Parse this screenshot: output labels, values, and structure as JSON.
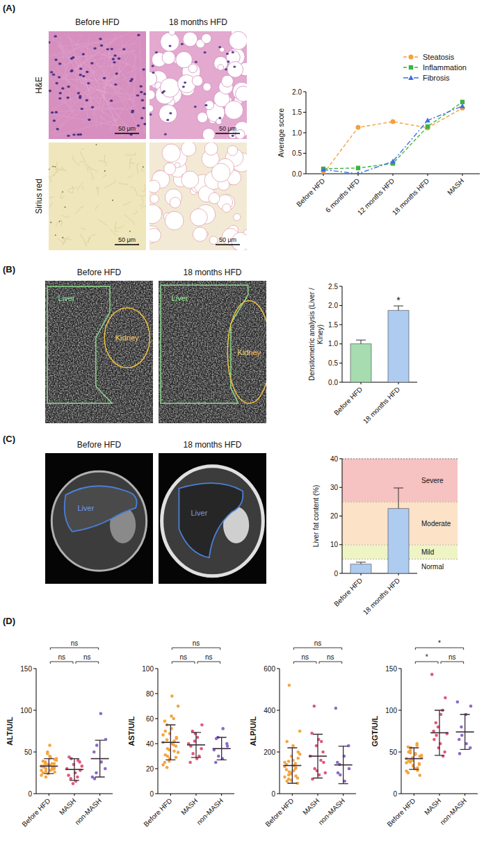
{
  "figure": {
    "panel_labels": [
      "(A)",
      "(B)",
      "(C)",
      "(D)"
    ],
    "histology": {
      "columns": [
        "Before HFD",
        "18 months HFD"
      ],
      "rows": [
        "H&E",
        "Sirius red"
      ],
      "scale_bar": "50 μm"
    },
    "ultrasound": {
      "columns": [
        "Before HFD",
        "18 months HFD"
      ],
      "labels": [
        "Liver",
        "Kidney"
      ]
    },
    "mri": {
      "columns": [
        "Before HFD",
        "18 months HFD"
      ],
      "label": "Liver"
    }
  },
  "chart_data": [
    {
      "type": "line",
      "y_label": "Average score",
      "categories": [
        "Before HFD",
        "6 months HFD",
        "12 months HFD",
        "18 months HFD",
        "MASH"
      ],
      "series": [
        {
          "name": "Steatosis",
          "color": "#f5a03c",
          "marker": "circle",
          "line_style": "dashed",
          "values": [
            0,
            1.13,
            1.27,
            1.12,
            1.6
          ]
        },
        {
          "name": "Inflammation",
          "color": "#3cb43c",
          "marker": "square",
          "line_style": "dashed",
          "values": [
            0.12,
            0.14,
            0.25,
            1.15,
            1.75
          ]
        },
        {
          "name": "Fibrosis",
          "color": "#3c6ee6",
          "marker": "triangle",
          "line_style": "dashdot",
          "values": [
            0.1,
            0,
            0.3,
            1.3,
            1.65
          ]
        }
      ],
      "ylim": [
        0,
        2
      ],
      "yticks": [
        {
          "value": 0,
          "label": "0.0"
        },
        {
          "value": 0.5,
          "label": "0.5"
        },
        {
          "value": 1,
          "label": "1.0"
        },
        {
          "value": 1.5,
          "label": "1.5"
        },
        {
          "value": 2,
          "label": "2.0"
        }
      ],
      "legend": "top-right"
    },
    {
      "type": "bar",
      "y_label": "Densitometric analysis (Liver / Kiney)",
      "categories": [
        "Before HFD",
        "18 months HFD"
      ],
      "values": [
        1.0,
        1.87
      ],
      "errors": [
        0.1,
        0.12
      ],
      "colors": [
        "#a6dcb0",
        "#aecbf0"
      ],
      "ylim": [
        0,
        2.5
      ],
      "yticks": [
        {
          "value": 0,
          "label": "0.0"
        },
        {
          "value": 0.5,
          "label": "0.5"
        },
        {
          "value": 1,
          "label": "1.0"
        },
        {
          "value": 1.5,
          "label": "1.5"
        },
        {
          "value": 2,
          "label": "2.0"
        },
        {
          "value": 2.5,
          "label": "2.5"
        }
      ],
      "annotations": [
        {
          "text": "*",
          "index": 1
        }
      ]
    },
    {
      "type": "bar",
      "y_label": "Liver fat content (%)",
      "categories": [
        "Before HFD",
        "18 months HFD"
      ],
      "values": [
        3.2,
        22.6
      ],
      "errors": [
        0.7,
        7.2
      ],
      "colors": [
        "#aecbf0",
        "#aecbf0"
      ],
      "ylim": [
        0,
        40
      ],
      "yticks": [
        0,
        10,
        20,
        30,
        40
      ],
      "bands": [
        {
          "label": "Normal",
          "from": 0,
          "to": 5,
          "color": "#ffffff"
        },
        {
          "label": "Mild",
          "from": 5,
          "to": 10,
          "color": "#eef4c4"
        },
        {
          "label": "Moderate",
          "from": 10,
          "to": 25,
          "color": "#fce2c6"
        },
        {
          "label": "Severe",
          "from": 25,
          "to": 40,
          "color": "#f6c2c2"
        }
      ]
    },
    {
      "type": "dot",
      "y_label": "ALT/U/L",
      "categories": [
        "Before HFD",
        "MASH",
        "non-MASH"
      ],
      "colors": [
        "#f4a640",
        "#e05a78",
        "#8b6cc4"
      ],
      "points": [
        [
          33,
          38,
          30,
          45,
          28,
          36,
          41,
          25,
          32,
          50,
          35,
          29,
          31,
          40,
          22,
          37,
          27,
          34,
          43,
          30,
          26,
          39,
          33,
          48,
          24,
          36,
          31,
          42,
          28,
          35,
          20,
          58,
          44,
          32
        ],
        [
          30,
          18,
          42,
          25,
          15,
          38,
          28,
          22,
          44,
          12,
          35,
          20,
          40,
          33
        ],
        [
          20,
          25,
          58,
          96,
          38,
          30,
          65,
          50,
          18
        ]
      ],
      "mean": [
        33,
        29,
        42
      ],
      "sd": [
        9,
        13,
        22
      ],
      "ylim": [
        0,
        150
      ],
      "yticks": [
        0,
        50,
        100,
        150
      ],
      "comparisons": [
        {
          "groups": [
            0,
            1
          ],
          "label": "ns"
        },
        {
          "groups": [
            1,
            2
          ],
          "label": "ns"
        },
        {
          "groups": [
            0,
            2
          ],
          "label": "ns"
        }
      ]
    },
    {
      "type": "dot",
      "y_label": "AST/U/L",
      "categories": [
        "Before HFD",
        "MASH",
        "non-MASH"
      ],
      "colors": [
        "#f4a640",
        "#e05a78",
        "#8b6cc4"
      ],
      "points": [
        [
          41,
          55,
          30,
          62,
          78,
          38,
          45,
          25,
          50,
          35,
          28,
          60,
          42,
          33,
          47,
          21,
          36,
          52,
          40,
          29,
          44,
          58,
          31,
          26,
          48,
          39,
          34,
          70,
          23,
          43
        ],
        [
          40,
          50,
          32,
          28,
          45,
          36,
          55,
          25,
          38,
          42,
          48,
          30
        ],
        [
          35,
          45,
          30,
          28,
          52,
          40,
          38,
          25,
          44
        ]
      ],
      "mean": [
        41,
        39,
        36
      ],
      "sd": [
        14,
        10,
        9
      ],
      "ylim": [
        0,
        100
      ],
      "yticks": [
        0,
        20,
        40,
        60,
        80,
        100
      ],
      "comparisons": [
        {
          "groups": [
            0,
            1
          ],
          "label": "ns"
        },
        {
          "groups": [
            1,
            2
          ],
          "label": "ns"
        },
        {
          "groups": [
            0,
            2
          ],
          "label": "ns"
        }
      ]
    },
    {
      "type": "dot",
      "y_label": "ALP/U/L",
      "categories": [
        "Before HFD",
        "MASH",
        "non-MASH"
      ],
      "colors": [
        "#f4a640",
        "#e05a78",
        "#8b6cc4"
      ],
      "points": [
        [
          130,
          90,
          520,
          160,
          110,
          75,
          200,
          140,
          60,
          95,
          180,
          120,
          85,
          300,
          150,
          70,
          105,
          230,
          135,
          50,
          170,
          115,
          250,
          100,
          65,
          145,
          125,
          190,
          80,
          155
        ],
        [
          180,
          420,
          120,
          260,
          90,
          200,
          150,
          290,
          70,
          230,
          110,
          160,
          250,
          100
        ],
        [
          410,
          140,
          90,
          180,
          60,
          230,
          120,
          150,
          100
        ]
      ],
      "mean": [
        135,
        180,
        138
      ],
      "sd": [
        85,
        105,
        90
      ],
      "ylim": [
        0,
        600
      ],
      "yticks": [
        0,
        200,
        400,
        600
      ],
      "comparisons": [
        {
          "groups": [
            0,
            1
          ],
          "label": "ns"
        },
        {
          "groups": [
            1,
            2
          ],
          "label": "ns"
        },
        {
          "groups": [
            0,
            2
          ],
          "label": "ns"
        }
      ]
    },
    {
      "type": "dot",
      "y_label": "GGT/U/L",
      "categories": [
        "Before HFD",
        "MASH",
        "non-MASH"
      ],
      "colors": [
        "#f4a640",
        "#e05a78",
        "#8b6cc4"
      ],
      "points": [
        [
          42,
          38,
          55,
          30,
          48,
          35,
          45,
          25,
          50,
          40,
          33,
          60,
          28,
          44,
          37,
          52,
          41,
          30,
          47,
          36,
          22,
          56,
          39,
          43,
          34,
          58,
          31,
          46,
          27,
          49
        ],
        [
          143,
          85,
          70,
          60,
          95,
          50,
          115,
          75,
          65,
          80,
          55,
          100,
          45,
          72
        ],
        [
          110,
          80,
          70,
          95,
          60,
          55,
          105,
          65,
          48
        ]
      ],
      "mean": [
        42,
        73,
        74
      ],
      "sd": [
        13,
        27,
        21
      ],
      "ylim": [
        0,
        150
      ],
      "yticks": [
        0,
        50,
        100,
        150
      ],
      "comparisons": [
        {
          "groups": [
            0,
            1
          ],
          "label": "*"
        },
        {
          "groups": [
            1,
            2
          ],
          "label": "ns"
        },
        {
          "groups": [
            0,
            2
          ],
          "label": "*"
        }
      ]
    }
  ]
}
